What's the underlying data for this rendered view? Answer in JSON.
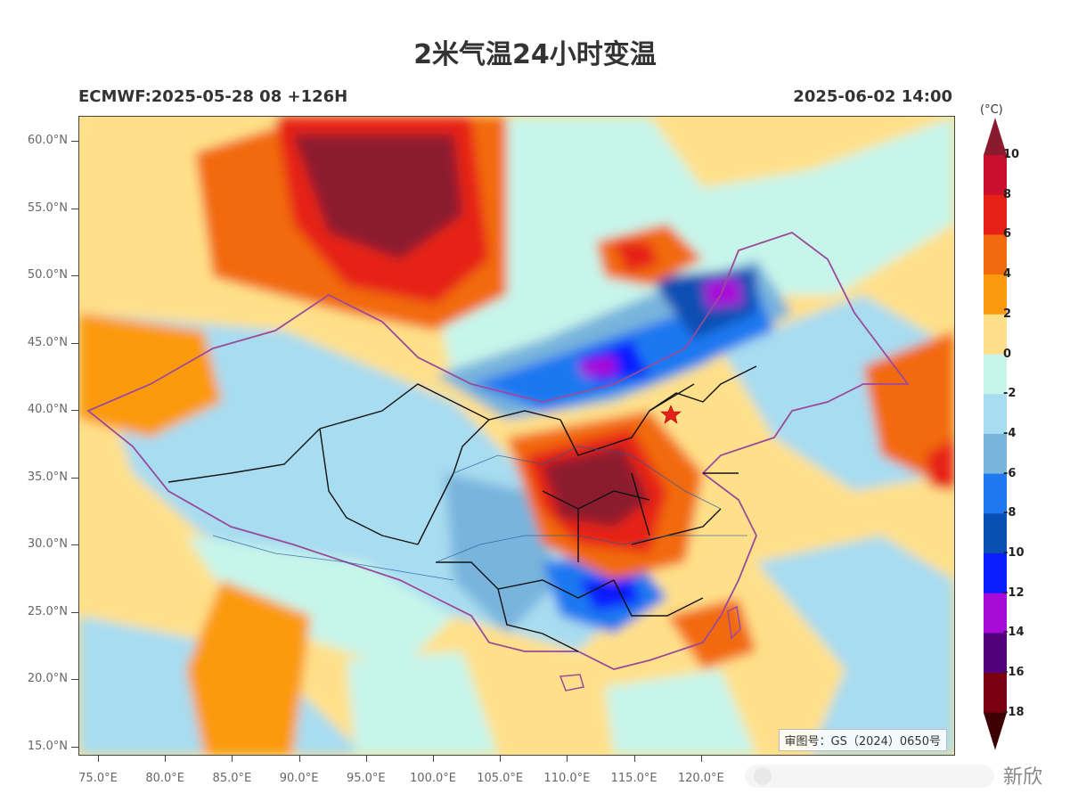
{
  "title": "2米气温24小时变温",
  "model_run": "ECMWF:2025-05-28 08 +126H",
  "valid_time": "2025-06-02 14:00",
  "map_stamp": "审图号：GS（2024）0650号",
  "watermark_text": "新欣",
  "lat_labels": [
    "60.0°N",
    "55.0°N",
    "50.0°N",
    "45.0°N",
    "40.0°N",
    "35.0°N",
    "30.0°N",
    "25.0°N",
    "20.0°N",
    "15.0°N"
  ],
  "lon_labels": [
    "75.0°E",
    "80.0°E",
    "85.0°E",
    "90.0°E",
    "95.0°E",
    "100.0°E",
    "105.0°E",
    "110.0°E",
    "115.0°E",
    "120.0°E"
  ],
  "colorbar": {
    "unit": "(°C)",
    "labels": [
      "10",
      "8",
      "6",
      "4",
      "2",
      "0",
      "-2",
      "-4",
      "-6",
      "-8",
      "-10",
      "-12",
      "-14",
      "-16",
      "-18"
    ],
    "colors": [
      "#8b1a2e",
      "#c8102e",
      "#e62218",
      "#f26a10",
      "#fb9a10",
      "#ffe08a",
      "#c8f5ea",
      "#a8dcf0",
      "#78b4dc",
      "#1e78f0",
      "#0a50b4",
      "#0a1eff",
      "#a80ad8",
      "#50007a",
      "#7a0010",
      "#3c0005"
    ]
  }
}
